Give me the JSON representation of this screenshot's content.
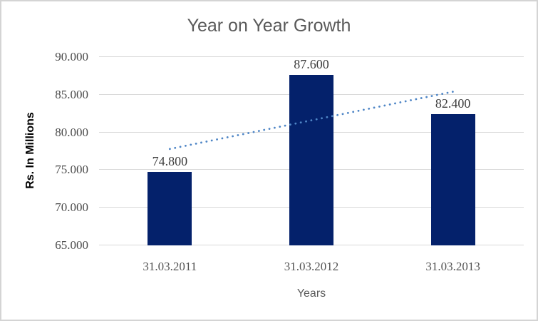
{
  "window": {
    "background": "#ffffff",
    "border_color": "#d4d4d4"
  },
  "chart_data": {
    "type": "bar",
    "title": "Year on Year Growth",
    "xlabel": "Years",
    "ylabel": "Rs. In Millions",
    "categories": [
      "31.03.2011",
      "31.03.2012",
      "31.03.2013"
    ],
    "values": [
      74.8,
      87.6,
      82.4
    ],
    "value_labels": [
      "74.800",
      "87.600",
      "82.400"
    ],
    "ylim": [
      65,
      90
    ],
    "ytick_values": [
      65,
      70,
      75,
      80,
      85,
      90
    ],
    "ytick_labels": [
      "65.000",
      "70.000",
      "75.000",
      "80.000",
      "85.000",
      "90.000"
    ],
    "grid": "horizontal-only",
    "legend": "none",
    "bar_color": "#04216b",
    "trendline": {
      "type": "linear",
      "style": "dotted",
      "color": "#4f86c6",
      "start_value": 77.8,
      "end_value": 85.4
    },
    "colors": {
      "gridline": "#d9d9d9",
      "axis_line": "#d9d9d9",
      "title_text": "#595959",
      "tick_text": "#4a4a4a",
      "data_label_text": "#3d3d3d",
      "x_axis_title_text": "#595959",
      "y_axis_title_text": "#000000"
    }
  }
}
